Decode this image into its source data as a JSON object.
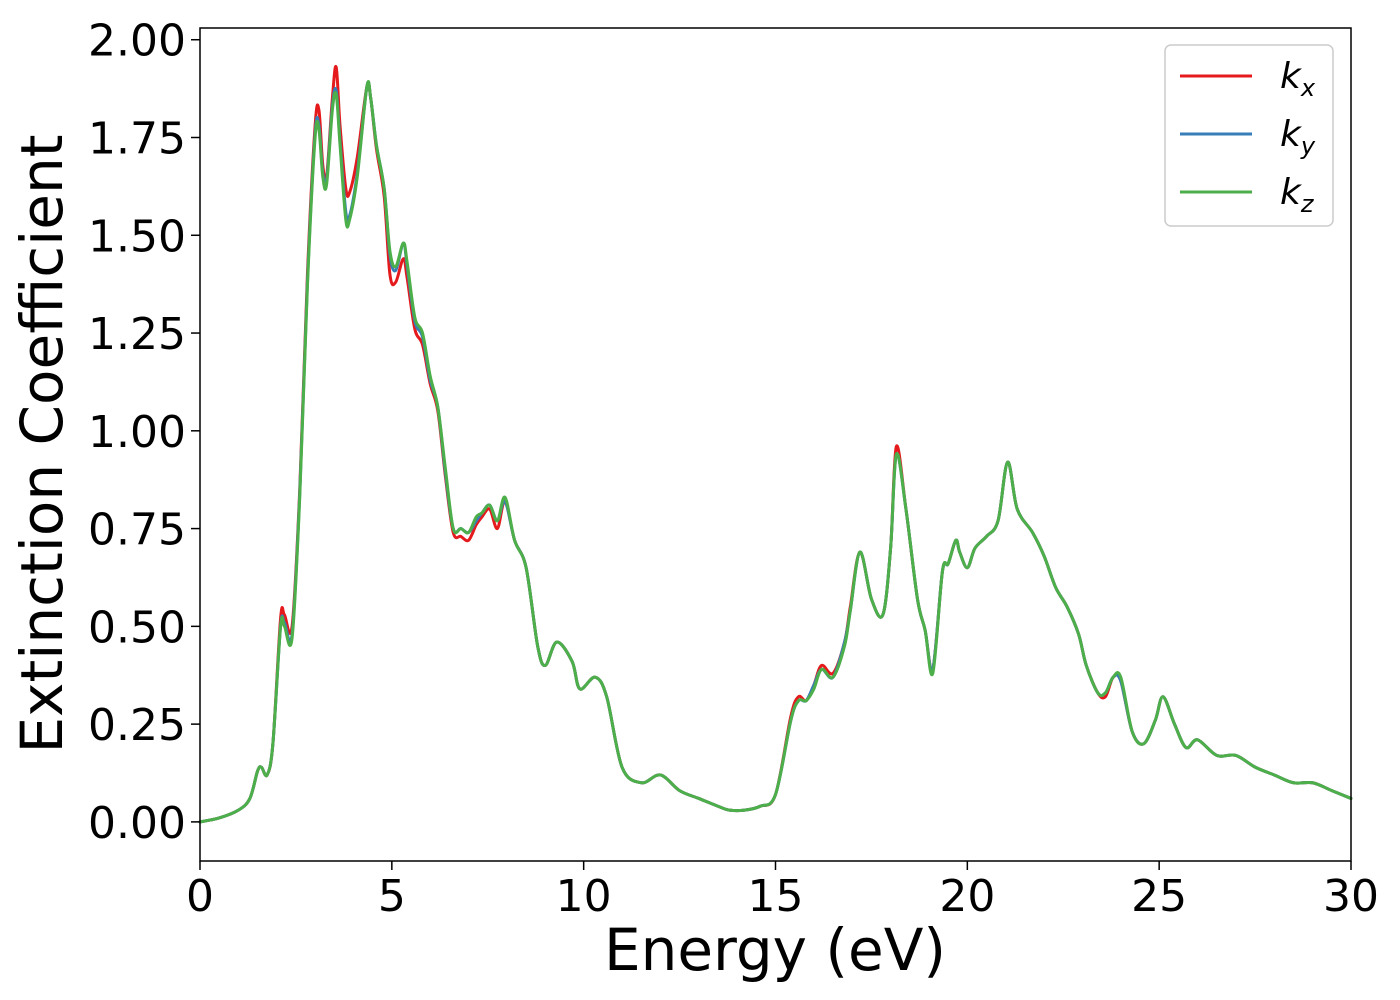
{
  "chart_data": {
    "type": "line",
    "title": "",
    "xlabel": "Energy (eV)",
    "ylabel": "Extinction Coefficient",
    "xlim": [
      0,
      30
    ],
    "ylim": [
      -0.1,
      2.03
    ],
    "xticks": [
      0,
      5,
      10,
      15,
      20,
      25,
      30
    ],
    "yticks": [
      0.0,
      0.25,
      0.5,
      0.75,
      1.0,
      1.25,
      1.5,
      1.75,
      2.0
    ],
    "xtick_labels": [
      "0",
      "5",
      "10",
      "15",
      "20",
      "25",
      "30"
    ],
    "ytick_labels": [
      "0.00",
      "0.25",
      "0.50",
      "0.75",
      "1.00",
      "1.25",
      "1.50",
      "1.75",
      "2.00"
    ],
    "grid": false,
    "legend_position": "top-right",
    "series": [
      {
        "name": "k_x",
        "label_main": "k",
        "label_sub": "x",
        "color": "#e41a1c",
        "x": [
          0,
          0.5,
          1,
          1.3,
          1.5,
          1.6,
          1.75,
          1.9,
          2.1,
          2.2,
          2.4,
          2.6,
          2.8,
          3.0,
          3.1,
          3.2,
          3.3,
          3.45,
          3.55,
          3.65,
          3.8,
          3.9,
          4.1,
          4.35,
          4.45,
          4.6,
          4.8,
          4.95,
          5.1,
          5.3,
          5.4,
          5.6,
          5.8,
          6.0,
          6.2,
          6.4,
          6.6,
          6.8,
          7.0,
          7.2,
          7.35,
          7.55,
          7.75,
          7.95,
          8.2,
          8.5,
          8.8,
          9.0,
          9.3,
          9.7,
          9.9,
          10.3,
          10.6,
          11.0,
          11.5,
          12.0,
          12.5,
          13.0,
          13.5,
          13.8,
          14.2,
          14.6,
          15.0,
          15.4,
          15.6,
          15.8,
          16.0,
          16.2,
          16.5,
          16.8,
          16.95,
          17.2,
          17.5,
          17.8,
          18.0,
          18.15,
          18.4,
          18.7,
          18.9,
          19.1,
          19.35,
          19.5,
          19.7,
          19.8,
          20.0,
          20.2,
          20.5,
          20.8,
          21.05,
          21.3,
          21.7,
          22.0,
          22.3,
          22.6,
          22.9,
          23.1,
          23.4,
          23.6,
          23.8,
          24.0,
          24.3,
          24.6,
          24.9,
          25.1,
          25.4,
          25.7,
          26.0,
          26.5,
          27.0,
          27.5,
          28.0,
          28.5,
          29.0,
          29.5,
          30.0
        ],
        "y": [
          0.0,
          0.01,
          0.03,
          0.06,
          0.13,
          0.14,
          0.12,
          0.2,
          0.52,
          0.53,
          0.5,
          0.85,
          1.4,
          1.78,
          1.82,
          1.68,
          1.65,
          1.85,
          1.93,
          1.78,
          1.62,
          1.61,
          1.7,
          1.88,
          1.85,
          1.72,
          1.6,
          1.4,
          1.38,
          1.44,
          1.39,
          1.26,
          1.22,
          1.12,
          1.05,
          0.88,
          0.74,
          0.73,
          0.72,
          0.76,
          0.78,
          0.8,
          0.75,
          0.82,
          0.72,
          0.65,
          0.45,
          0.4,
          0.46,
          0.41,
          0.34,
          0.37,
          0.32,
          0.14,
          0.1,
          0.12,
          0.08,
          0.06,
          0.04,
          0.03,
          0.03,
          0.04,
          0.07,
          0.27,
          0.32,
          0.31,
          0.35,
          0.4,
          0.38,
          0.46,
          0.55,
          0.69,
          0.57,
          0.53,
          0.7,
          0.96,
          0.8,
          0.57,
          0.49,
          0.39,
          0.64,
          0.66,
          0.72,
          0.69,
          0.65,
          0.7,
          0.73,
          0.77,
          0.92,
          0.8,
          0.74,
          0.68,
          0.6,
          0.55,
          0.48,
          0.4,
          0.33,
          0.32,
          0.37,
          0.36,
          0.23,
          0.2,
          0.26,
          0.32,
          0.25,
          0.19,
          0.21,
          0.17,
          0.17,
          0.14,
          0.12,
          0.1,
          0.1,
          0.08,
          0.06
        ]
      },
      {
        "name": "k_y",
        "label_main": "k",
        "label_sub": "y",
        "color": "#377eb8",
        "x": [
          0,
          0.5,
          1,
          1.3,
          1.5,
          1.6,
          1.75,
          1.9,
          2.1,
          2.2,
          2.4,
          2.6,
          2.8,
          3.0,
          3.1,
          3.2,
          3.3,
          3.45,
          3.55,
          3.65,
          3.8,
          3.9,
          4.1,
          4.35,
          4.45,
          4.6,
          4.8,
          4.95,
          5.1,
          5.3,
          5.4,
          5.6,
          5.8,
          6.0,
          6.2,
          6.4,
          6.6,
          6.8,
          7.0,
          7.2,
          7.35,
          7.55,
          7.75,
          7.95,
          8.2,
          8.5,
          8.8,
          9.0,
          9.3,
          9.7,
          9.9,
          10.3,
          10.6,
          11.0,
          11.5,
          12.0,
          12.5,
          13.0,
          13.5,
          13.8,
          14.2,
          14.6,
          15.0,
          15.4,
          15.6,
          15.8,
          16.0,
          16.2,
          16.5,
          16.8,
          16.95,
          17.2,
          17.5,
          17.8,
          18.0,
          18.15,
          18.4,
          18.7,
          18.9,
          19.1,
          19.35,
          19.5,
          19.7,
          19.8,
          20.0,
          20.2,
          20.5,
          20.8,
          21.05,
          21.3,
          21.7,
          22.0,
          22.3,
          22.6,
          22.9,
          23.1,
          23.4,
          23.6,
          23.8,
          24.0,
          24.3,
          24.6,
          24.9,
          25.1,
          25.4,
          25.7,
          26.0,
          26.5,
          27.0,
          27.5,
          28.0,
          28.5,
          29.0,
          29.5,
          30.0
        ],
        "y": [
          0.0,
          0.01,
          0.03,
          0.06,
          0.13,
          0.14,
          0.12,
          0.2,
          0.5,
          0.51,
          0.48,
          0.84,
          1.38,
          1.76,
          1.78,
          1.66,
          1.64,
          1.83,
          1.87,
          1.74,
          1.56,
          1.55,
          1.66,
          1.88,
          1.85,
          1.73,
          1.62,
          1.45,
          1.41,
          1.48,
          1.42,
          1.28,
          1.24,
          1.13,
          1.06,
          0.89,
          0.75,
          0.75,
          0.74,
          0.77,
          0.79,
          0.81,
          0.77,
          0.82,
          0.72,
          0.65,
          0.45,
          0.4,
          0.46,
          0.41,
          0.34,
          0.37,
          0.32,
          0.14,
          0.1,
          0.12,
          0.08,
          0.06,
          0.04,
          0.03,
          0.03,
          0.04,
          0.07,
          0.26,
          0.31,
          0.31,
          0.35,
          0.39,
          0.37,
          0.46,
          0.54,
          0.69,
          0.57,
          0.53,
          0.7,
          0.94,
          0.8,
          0.57,
          0.49,
          0.39,
          0.64,
          0.66,
          0.72,
          0.69,
          0.65,
          0.7,
          0.73,
          0.77,
          0.92,
          0.8,
          0.74,
          0.68,
          0.6,
          0.55,
          0.48,
          0.4,
          0.33,
          0.33,
          0.37,
          0.36,
          0.23,
          0.2,
          0.26,
          0.32,
          0.25,
          0.19,
          0.21,
          0.17,
          0.17,
          0.14,
          0.12,
          0.1,
          0.1,
          0.08,
          0.06
        ]
      },
      {
        "name": "k_z",
        "label_main": "k",
        "label_sub": "z",
        "color": "#4daf4a",
        "x": [
          0,
          0.5,
          1,
          1.3,
          1.5,
          1.6,
          1.75,
          1.9,
          2.1,
          2.2,
          2.4,
          2.6,
          2.8,
          3.0,
          3.1,
          3.2,
          3.3,
          3.45,
          3.55,
          3.65,
          3.8,
          3.9,
          4.1,
          4.35,
          4.45,
          4.6,
          4.8,
          4.95,
          5.1,
          5.3,
          5.4,
          5.6,
          5.8,
          6.0,
          6.2,
          6.4,
          6.6,
          6.8,
          7.0,
          7.2,
          7.35,
          7.55,
          7.75,
          7.95,
          8.2,
          8.5,
          8.8,
          9.0,
          9.3,
          9.7,
          9.9,
          10.3,
          10.6,
          11.0,
          11.5,
          12.0,
          12.5,
          13.0,
          13.5,
          13.8,
          14.2,
          14.6,
          15.0,
          15.4,
          15.6,
          15.8,
          16.0,
          16.2,
          16.5,
          16.8,
          16.95,
          17.2,
          17.5,
          17.8,
          18.0,
          18.15,
          18.4,
          18.7,
          18.9,
          19.1,
          19.35,
          19.5,
          19.7,
          19.8,
          20.0,
          20.2,
          20.5,
          20.8,
          21.05,
          21.3,
          21.7,
          22.0,
          22.3,
          22.6,
          22.9,
          23.1,
          23.4,
          23.6,
          23.8,
          24.0,
          24.3,
          24.6,
          24.9,
          25.1,
          25.4,
          25.7,
          26.0,
          26.5,
          27.0,
          27.5,
          28.0,
          28.5,
          29.0,
          29.5,
          30.0
        ],
        "y": [
          0.0,
          0.01,
          0.03,
          0.06,
          0.13,
          0.14,
          0.12,
          0.2,
          0.5,
          0.5,
          0.47,
          0.83,
          1.37,
          1.75,
          1.77,
          1.65,
          1.63,
          1.82,
          1.86,
          1.73,
          1.54,
          1.54,
          1.65,
          1.88,
          1.85,
          1.73,
          1.62,
          1.46,
          1.42,
          1.48,
          1.43,
          1.29,
          1.25,
          1.14,
          1.06,
          0.9,
          0.75,
          0.75,
          0.74,
          0.78,
          0.79,
          0.81,
          0.77,
          0.83,
          0.72,
          0.65,
          0.45,
          0.4,
          0.46,
          0.41,
          0.34,
          0.37,
          0.32,
          0.14,
          0.1,
          0.12,
          0.08,
          0.06,
          0.04,
          0.03,
          0.03,
          0.04,
          0.07,
          0.26,
          0.31,
          0.31,
          0.34,
          0.39,
          0.37,
          0.45,
          0.54,
          0.69,
          0.57,
          0.53,
          0.7,
          0.94,
          0.8,
          0.57,
          0.49,
          0.38,
          0.64,
          0.66,
          0.72,
          0.69,
          0.65,
          0.7,
          0.73,
          0.77,
          0.92,
          0.8,
          0.74,
          0.68,
          0.6,
          0.55,
          0.48,
          0.4,
          0.33,
          0.33,
          0.37,
          0.37,
          0.23,
          0.2,
          0.26,
          0.32,
          0.25,
          0.19,
          0.21,
          0.17,
          0.17,
          0.14,
          0.12,
          0.1,
          0.1,
          0.08,
          0.06
        ]
      }
    ]
  }
}
